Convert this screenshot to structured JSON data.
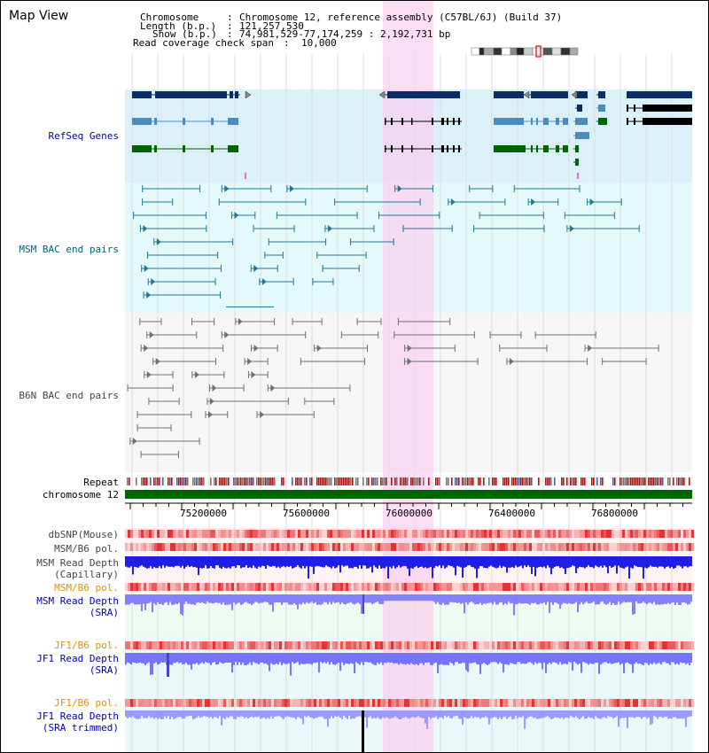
{
  "panel_title": "Map View",
  "header": {
    "chromosome_key": "Chromosome",
    "chromosome_value": "Chromosome 12, reference assembly (C57BL/6J) (Build 37)",
    "length_key": "Length (b.p.)",
    "length_value": "121,257,530",
    "show_key": "Show (b.p.)",
    "show_value": "74,981,529-77,174,259 : 2,192,731 bp",
    "coverage_key": "Read coverage check span",
    "coverage_value": "10,000"
  },
  "tracks": {
    "refseq": "RefSeq Genes",
    "msm_bac": "MSM BAC end pairs",
    "b6n_bac": "B6N BAC end pairs",
    "repeat": "Repeat",
    "chromosome": "chromosome 12",
    "dbsnp": "dbSNP(Mouse)",
    "msm_b6_pol": "MSM/B6 pol.",
    "msm_read_depth_cap_1": "MSM Read Depth",
    "msm_read_depth_cap_2": "(Capillary)",
    "msm_b6_pol_sra": "MSM/B6 pol.",
    "msm_read_depth_sra_1": "MSM Read Depth",
    "msm_read_depth_sra_2": "(SRA)",
    "jf1_b6_pol": "JF1/B6 pol.",
    "jf1_read_depth_1": "JF1 Read Depth",
    "jf1_read_depth_2": "(SRA)",
    "jf1_b6_pol_trim": "JF1/B6 pol.",
    "jf1_read_depth_trim_1": "JF1 Read Depth",
    "jf1_read_depth_trim_2": "(SRA trimmed)"
  },
  "axis_ticks": [
    "75200000",
    "75600000",
    "76000000",
    "76400000",
    "76800000"
  ],
  "colors": {
    "refseq_bg": "#dcf0fa",
    "msm_bac_bg": "#e4fafa",
    "b6n_bg": "#f6f6f6",
    "highlight": "#fad2f0",
    "chromosome_bar": "#006400",
    "gene_navy": "#0a2d64",
    "gene_steel": "#4a8cbe",
    "gene_green": "#006400",
    "bac_teal": "#1e7896",
    "b6n_gray": "#707070",
    "read_depth_blue": "#1e1ee6",
    "read_depth_light": "#8282ff",
    "pol_red": "#e63232"
  }
}
